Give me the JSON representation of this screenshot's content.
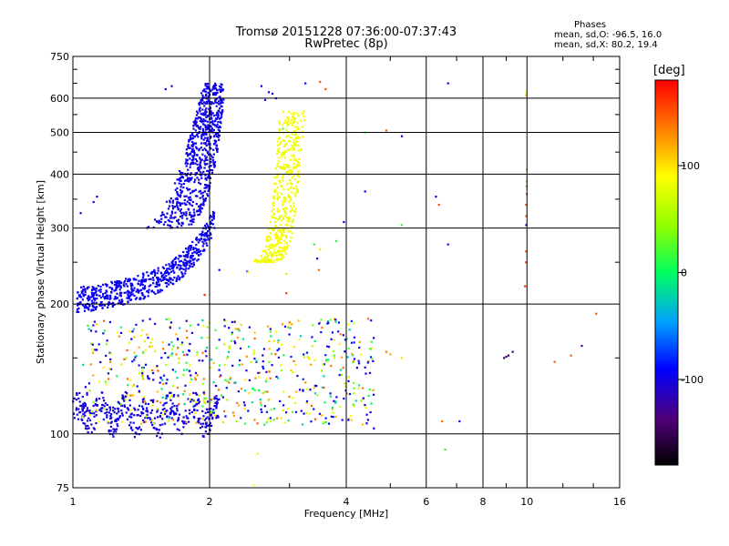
{
  "title": "Tromsø 20151228 07:36:00-07:37:43",
  "subtitle": "RwPretec (8p)",
  "phase_box": {
    "heading": "Phases",
    "stats_o": "mean, sd,O: -96.5, 16.0",
    "stats_x": "mean, sd,X:  80.2, 19.4"
  },
  "colorbar": {
    "unit": "[deg]",
    "range": [
      -180,
      180
    ],
    "ticks": [
      100,
      0,
      -100
    ],
    "tick_labels": [
      "100",
      "0",
      "-100"
    ]
  },
  "colors": {
    "grid": "#000000",
    "frame": "#000000"
  },
  "chart_data": {
    "type": "scatter",
    "title": "Tromsø 20151228 07:36:00-07:37:43",
    "subtitle": "RwPretec (8p)",
    "xlabel": "Frequency [MHz]",
    "ylabel": "Stationary phase Virtual Height [km]",
    "xscale": "log",
    "yscale": "log",
    "xlim": [
      1,
      16
    ],
    "ylim": [
      75,
      750
    ],
    "xticks": [
      1,
      2,
      4,
      6,
      8,
      10,
      16
    ],
    "xtick_labels": [
      "1",
      "2",
      "4",
      "6",
      "8",
      "10",
      "16"
    ],
    "yticks": [
      75,
      100,
      200,
      300,
      400,
      500,
      600,
      750
    ],
    "ytick_labels": [
      "75",
      "100",
      "200",
      "300",
      "400",
      "500",
      "600",
      "750"
    ],
    "grid": true,
    "color_encoding": "phase",
    "groups": [
      {
        "desc": "F-layer O trace lower",
        "freq": [
          1.02,
          2.05
        ],
        "height": [
          200,
          300
        ],
        "phase": [
          -100,
          -90
        ],
        "n": 600,
        "shape": "f-lower"
      },
      {
        "desc": "F-layer O trace upper",
        "freq": [
          1.3,
          2.1
        ],
        "height": [
          300,
          650
        ],
        "phase": [
          -105,
          -92
        ],
        "n": 700,
        "shape": "f-upper"
      },
      {
        "desc": "F-layer X trace",
        "freq": [
          2.4,
          3.1
        ],
        "height": [
          250,
          560
        ],
        "phase": [
          75,
          95
        ],
        "n": 450,
        "shape": "x-trace"
      },
      {
        "desc": "E-region echoes",
        "freq": [
          1.0,
          2.1
        ],
        "height": [
          103,
          120
        ],
        "phase": [
          -110,
          -95
        ],
        "n": 380,
        "shape": "e-band"
      },
      {
        "desc": "Sporadic E mixed",
        "freq": [
          1.05,
          4.6
        ],
        "height": [
          105,
          185
        ],
        "phase": [
          -120,
          150
        ],
        "n": 650,
        "shape": "es-cloud"
      }
    ],
    "points": [
      {
        "f": 2.55,
        "h": 90,
        "phase": 95
      },
      {
        "f": 2.5,
        "h": 76,
        "phase": 90
      },
      {
        "f": 6.6,
        "h": 92,
        "phase": 10
      },
      {
        "f": 6.7,
        "h": 650,
        "phase": -95
      },
      {
        "f": 6.7,
        "h": 275,
        "phase": -95
      },
      {
        "f": 7.1,
        "h": 107,
        "phase": -90
      },
      {
        "f": 6.5,
        "h": 107,
        "phase": 140
      },
      {
        "f": 5.3,
        "h": 490,
        "phase": -95
      },
      {
        "f": 5.3,
        "h": 305,
        "phase": 10
      },
      {
        "f": 4.9,
        "h": 505,
        "phase": 150
      },
      {
        "f": 4.4,
        "h": 500,
        "phase": 10
      },
      {
        "f": 4.4,
        "h": 365,
        "phase": -95
      },
      {
        "f": 6.3,
        "h": 355,
        "phase": -95
      },
      {
        "f": 6.4,
        "h": 340,
        "phase": 150
      },
      {
        "f": 3.95,
        "h": 310,
        "phase": -95
      },
      {
        "f": 8.9,
        "h": 150,
        "phase": -150
      },
      {
        "f": 9.0,
        "h": 151,
        "phase": -120
      },
      {
        "f": 9.1,
        "h": 152,
        "phase": -150
      },
      {
        "f": 9.95,
        "h": 620,
        "phase": 90
      },
      {
        "f": 9.95,
        "h": 610,
        "phase": 110
      },
      {
        "f": 9.98,
        "h": 410,
        "phase": 40
      },
      {
        "f": 9.98,
        "h": 385,
        "phase": 110
      },
      {
        "f": 9.98,
        "h": 375,
        "phase": 140
      },
      {
        "f": 9.98,
        "h": 360,
        "phase": 150
      },
      {
        "f": 9.96,
        "h": 340,
        "phase": 160
      },
      {
        "f": 9.96,
        "h": 320,
        "phase": 150
      },
      {
        "f": 9.96,
        "h": 305,
        "phase": -95
      },
      {
        "f": 9.95,
        "h": 265,
        "phase": 150
      },
      {
        "f": 9.95,
        "h": 250,
        "phase": 160
      },
      {
        "f": 9.9,
        "h": 220,
        "phase": 165
      },
      {
        "f": 14.2,
        "h": 190,
        "phase": 150
      },
      {
        "f": 13.2,
        "h": 160,
        "phase": -135
      },
      {
        "f": 12.5,
        "h": 152,
        "phase": 145
      },
      {
        "f": 11.5,
        "h": 147,
        "phase": 145
      },
      {
        "f": 9.3,
        "h": 155,
        "phase": -130
      },
      {
        "f": 4.6,
        "h": 103,
        "phase": -95
      },
      {
        "f": 4.9,
        "h": 155,
        "phase": 140
      },
      {
        "f": 5.0,
        "h": 153,
        "phase": 120
      },
      {
        "f": 5.3,
        "h": 150,
        "phase": 100
      },
      {
        "f": 3.5,
        "h": 655,
        "phase": 150
      },
      {
        "f": 3.6,
        "h": 630,
        "phase": 150
      },
      {
        "f": 3.25,
        "h": 650,
        "phase": -95
      },
      {
        "f": 3.45,
        "h": 255,
        "phase": -95
      },
      {
        "f": 3.48,
        "h": 240,
        "phase": 140
      },
      {
        "f": 3.5,
        "h": 268,
        "phase": 100
      },
      {
        "f": 3.4,
        "h": 275,
        "phase": 10
      },
      {
        "f": 2.95,
        "h": 212,
        "phase": 160
      },
      {
        "f": 1.95,
        "h": 210,
        "phase": 165
      },
      {
        "f": 2.95,
        "h": 235,
        "phase": 100
      },
      {
        "f": 2.42,
        "h": 238,
        "phase": -95
      },
      {
        "f": 2.43,
        "h": 237,
        "phase": 90
      },
      {
        "f": 2.8,
        "h": 600,
        "phase": -95
      },
      {
        "f": 2.75,
        "h": 615,
        "phase": -95
      },
      {
        "f": 2.6,
        "h": 640,
        "phase": -100
      },
      {
        "f": 2.65,
        "h": 595,
        "phase": -100
      },
      {
        "f": 2.7,
        "h": 620,
        "phase": -95
      },
      {
        "f": 2.9,
        "h": 510,
        "phase": 20
      },
      {
        "f": 2.1,
        "h": 240,
        "phase": -95
      },
      {
        "f": 3.8,
        "h": 280,
        "phase": 10
      },
      {
        "f": 1.13,
        "h": 355,
        "phase": -95
      },
      {
        "f": 1.11,
        "h": 345,
        "phase": -100
      },
      {
        "f": 1.04,
        "h": 325,
        "phase": -95
      },
      {
        "f": 1.6,
        "h": 630,
        "phase": -95
      },
      {
        "f": 1.65,
        "h": 640,
        "phase": -105
      }
    ]
  }
}
